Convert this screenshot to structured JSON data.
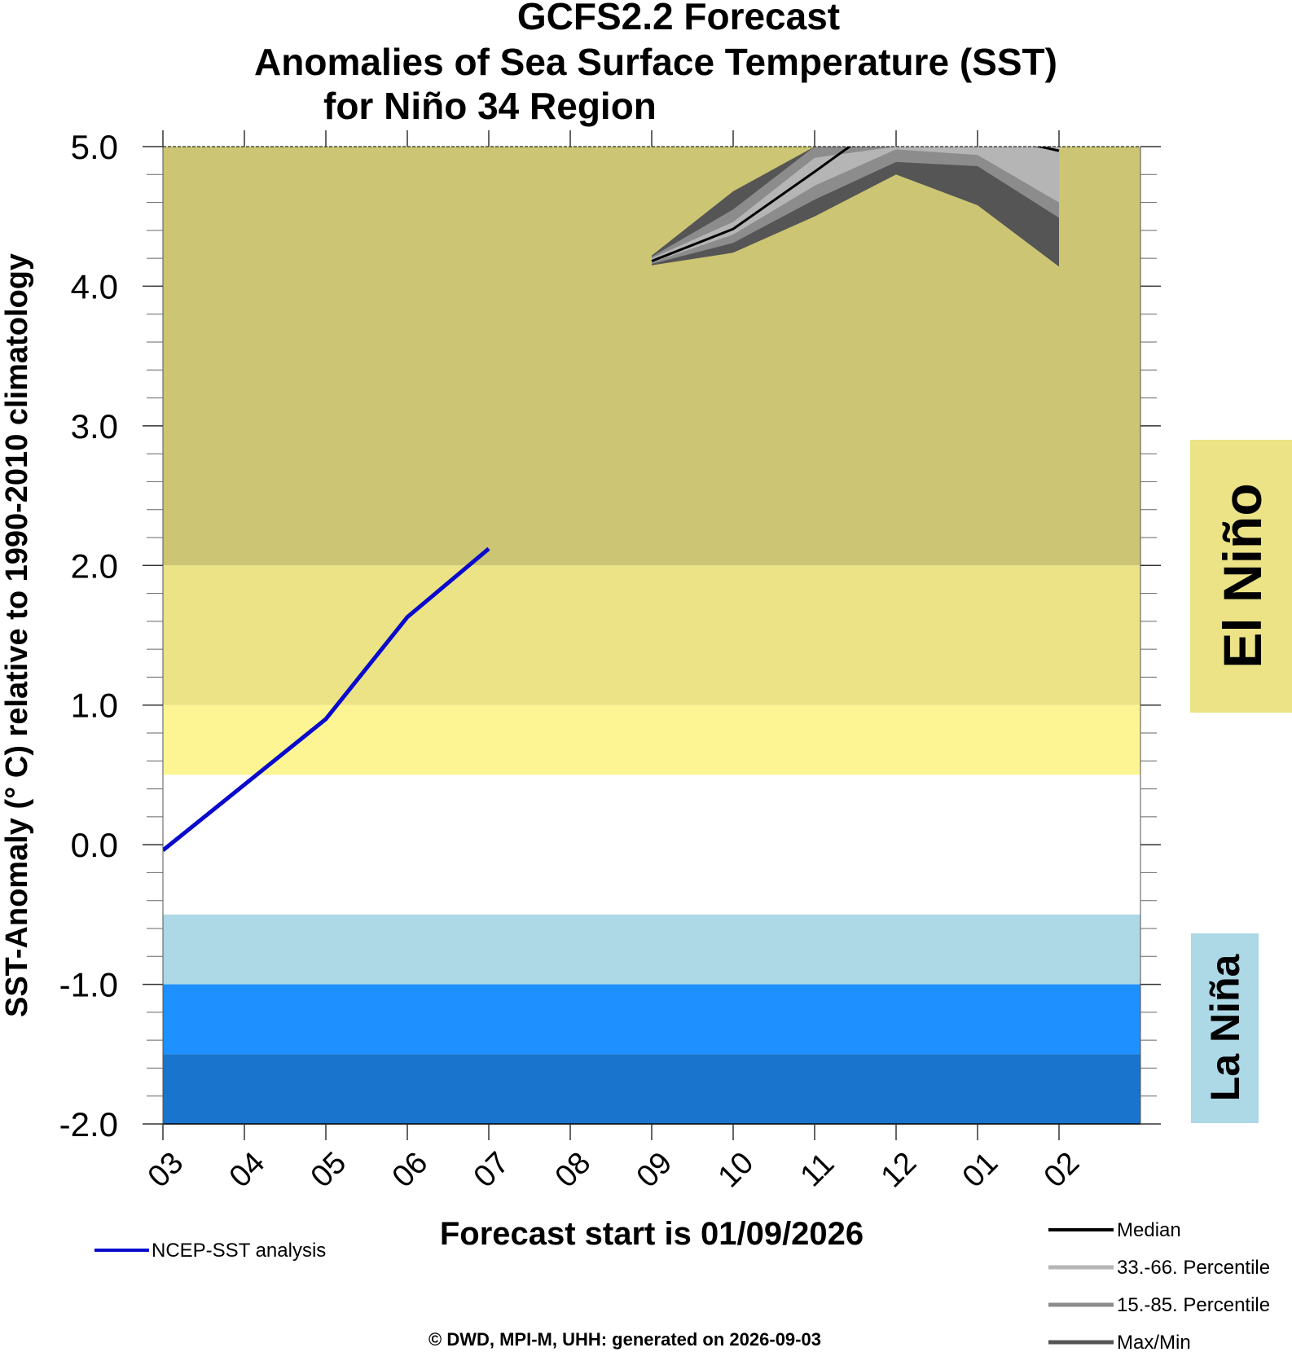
{
  "title": {
    "line1": "GCFS2.2 Forecast",
    "line2": "Anomalies of Sea Surface Temperature (SST)",
    "line3": "for Niño 34 Region"
  },
  "forecast_start_label": "Forecast start is  01/09/2026",
  "credit": "©  DWD, MPI-M, UHH: generated on 2026-09-03",
  "regimes": {
    "el_nino": {
      "label": "El Niño",
      "color": "#EBE386"
    },
    "la_nina": {
      "label": "La Niña",
      "color": "#ADD8E6"
    }
  },
  "colors": {
    "band_strong": "#CCC573",
    "band_moderate": "#EBE386",
    "band_weak": "#FDF594",
    "band_neutral": "#FFFFFF",
    "band_weak_cold": "#ADD8E6",
    "band_moderate_cold": "#1E90FF",
    "band_strong_cold": "#1874CD",
    "observed_line": "#0A0ACD",
    "median": "#000000",
    "p33_66": "#B5B5B5",
    "p15_85": "#8C8C8C",
    "maxmin": "#555555"
  },
  "chart_data": {
    "type": "line",
    "title": "GCFS2.2 Forecast Anomalies of Sea Surface Temperature (SST) for Niño 34 Region",
    "xlabel": "Forecast start is  01/09/2026",
    "ylabel": "SST-Anomaly (° C) relative to 1990-2010 climatology",
    "x_categories": [
      "03",
      "04",
      "05",
      "06",
      "07",
      "08",
      "09",
      "10",
      "11",
      "12",
      "01",
      "02"
    ],
    "ylim": [
      -2.0,
      5.0
    ],
    "yticks": [
      "-2.0",
      "-1.0",
      "0.0",
      "1.0",
      "2.0",
      "3.0",
      "4.0",
      "5.0"
    ],
    "grid": false,
    "bands": [
      {
        "from": 2.0,
        "to": 5.0,
        "color": "#CCC573"
      },
      {
        "from": 1.0,
        "to": 2.0,
        "color": "#EBE386"
      },
      {
        "from": 0.5,
        "to": 1.0,
        "color": "#FDF594"
      },
      {
        "from": -0.5,
        "to": 0.5,
        "color": "#FFFFFF"
      },
      {
        "from": -1.0,
        "to": -0.5,
        "color": "#ADD8E6"
      },
      {
        "from": -1.5,
        "to": -1.0,
        "color": "#1E90FF"
      },
      {
        "from": -2.0,
        "to": -1.5,
        "color": "#1874CD"
      }
    ],
    "series": [
      {
        "name": "NCEP-SST analysis",
        "color": "#0A0ACD",
        "x": [
          "03",
          "04",
          "05",
          "06",
          "07"
        ],
        "values": [
          -0.04,
          0.43,
          0.9,
          1.63,
          2.12
        ]
      },
      {
        "name": "Median",
        "color": "#000000",
        "x": [
          "09",
          "10",
          "11",
          "12",
          "01",
          "02"
        ],
        "values": [
          4.18,
          4.41,
          4.82,
          5.24,
          5.1,
          4.97
        ]
      }
    ],
    "envelopes": [
      {
        "name": "Max/Min",
        "color": "#555555",
        "x": [
          "09",
          "10",
          "11",
          "12",
          "01",
          "02"
        ],
        "upper": [
          4.22,
          4.68,
          5.0,
          5.0,
          5.0,
          5.0
        ],
        "lower": [
          4.15,
          4.24,
          4.5,
          4.8,
          4.58,
          4.14
        ]
      },
      {
        "name": "15.-85. Percentile",
        "color": "#8C8C8C",
        "x": [
          "09",
          "10",
          "11",
          "12",
          "01",
          "02"
        ],
        "upper": [
          4.21,
          4.55,
          5.0,
          5.0,
          5.0,
          5.0
        ],
        "lower": [
          4.16,
          4.31,
          4.62,
          4.89,
          4.86,
          4.49
        ]
      },
      {
        "name": "33.-66. Percentile",
        "color": "#B5B5B5",
        "x": [
          "09",
          "10",
          "11",
          "12",
          "01",
          "02"
        ],
        "upper": [
          4.2,
          4.46,
          4.92,
          5.0,
          5.0,
          5.0
        ],
        "lower": [
          4.17,
          4.37,
          4.72,
          4.98,
          4.94,
          4.6
        ]
      }
    ],
    "legend": [
      {
        "name": "NCEP-SST analysis",
        "color": "#0A0ACD",
        "placement": "bottom-left"
      },
      {
        "name": "Median",
        "color": "#000000",
        "placement": "bottom-right"
      },
      {
        "name": "33.-66. Percentile",
        "color": "#B5B5B5",
        "placement": "bottom-right"
      },
      {
        "name": "15.-85. Percentile",
        "color": "#8C8C8C",
        "placement": "bottom-right"
      },
      {
        "name": "Max/Min",
        "color": "#555555",
        "placement": "bottom-right"
      }
    ]
  }
}
